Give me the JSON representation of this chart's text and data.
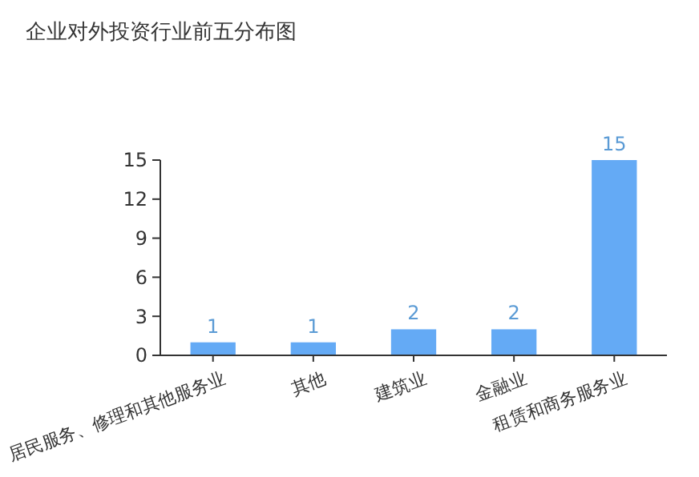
{
  "chart_data": {
    "type": "bar",
    "title": "企业对外投资行业前五分布图",
    "categories": [
      "居民服务、修理和其他服务业",
      "其他",
      "建筑业",
      "金融业",
      "租赁和商务服务业"
    ],
    "values": [
      1,
      1,
      2,
      2,
      15
    ],
    "color": "#64aaf5",
    "ylim": [
      0,
      15
    ],
    "yticks": [
      0,
      3,
      6,
      9,
      12,
      15
    ],
    "data_labels": true,
    "grid": false
  }
}
